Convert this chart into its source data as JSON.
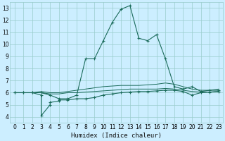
{
  "title": "",
  "xlabel": "Humidex (Indice chaleur)",
  "bg_color": "#cceeff",
  "grid_color": "#99cccc",
  "line_color": "#1a6b5a",
  "xlim": [
    -0.5,
    23.5
  ],
  "ylim": [
    3.5,
    13.5
  ],
  "xticks": [
    0,
    1,
    2,
    3,
    4,
    5,
    6,
    7,
    8,
    9,
    10,
    11,
    12,
    13,
    14,
    15,
    16,
    17,
    18,
    19,
    20,
    21,
    22,
    23
  ],
  "yticks": [
    4,
    5,
    6,
    7,
    8,
    9,
    10,
    11,
    12,
    13
  ],
  "series": {
    "main": {
      "x": [
        0,
        1,
        2,
        3,
        4,
        5,
        6,
        7,
        8,
        9,
        10,
        11,
        12,
        13,
        14,
        15,
        16,
        17,
        18,
        19,
        20,
        21,
        22,
        23
      ],
      "y": [
        6.0,
        6.0,
        6.0,
        6.0,
        5.8,
        5.5,
        5.5,
        5.8,
        8.8,
        8.8,
        10.3,
        11.8,
        12.9,
        13.2,
        10.5,
        10.3,
        10.8,
        8.8,
        6.5,
        6.3,
        6.5,
        6.1,
        6.2,
        6.2
      ],
      "marker": true
    },
    "upper_flat": {
      "x": [
        0,
        1,
        2,
        3,
        4,
        5,
        6,
        7,
        8,
        9,
        10,
        11,
        12,
        13,
        14,
        15,
        16,
        17,
        18,
        19,
        20,
        21,
        22,
        23
      ],
      "y": [
        6.0,
        6.0,
        6.0,
        6.1,
        6.0,
        6.0,
        6.1,
        6.2,
        6.3,
        6.4,
        6.5,
        6.55,
        6.6,
        6.6,
        6.6,
        6.65,
        6.7,
        6.8,
        6.7,
        6.5,
        6.3,
        6.2,
        6.2,
        6.3
      ],
      "marker": false
    },
    "lower_flat": {
      "x": [
        0,
        1,
        2,
        3,
        4,
        5,
        6,
        7,
        8,
        9,
        10,
        11,
        12,
        13,
        14,
        15,
        16,
        17,
        18,
        19,
        20,
        21,
        22,
        23
      ],
      "y": [
        6.0,
        6.0,
        6.0,
        6.0,
        5.9,
        5.9,
        6.0,
        6.0,
        6.05,
        6.1,
        6.15,
        6.2,
        6.25,
        6.3,
        6.3,
        6.3,
        6.3,
        6.35,
        6.3,
        6.2,
        6.1,
        6.05,
        6.05,
        6.1
      ],
      "marker": false
    },
    "dip_curve": {
      "x": [
        0,
        1,
        2,
        3,
        3,
        4,
        4,
        5,
        5,
        6,
        7,
        8,
        9,
        10,
        11,
        12,
        13,
        14,
        15,
        16,
        17,
        18,
        19,
        20,
        21,
        22,
        23
      ],
      "y": [
        6.0,
        6.0,
        6.0,
        5.8,
        4.1,
        5.0,
        5.2,
        5.3,
        5.4,
        5.4,
        5.5,
        5.5,
        5.6,
        5.8,
        5.9,
        6.0,
        6.05,
        6.1,
        6.1,
        6.15,
        6.2,
        6.2,
        6.1,
        5.8,
        6.0,
        6.05,
        6.1
      ],
      "marker": true
    },
    "right_dip": {
      "x": [
        18,
        19,
        20,
        21,
        22,
        23
      ],
      "y": [
        6.5,
        6.3,
        5.8,
        6.1,
        6.1,
        6.2
      ],
      "marker": true
    }
  }
}
